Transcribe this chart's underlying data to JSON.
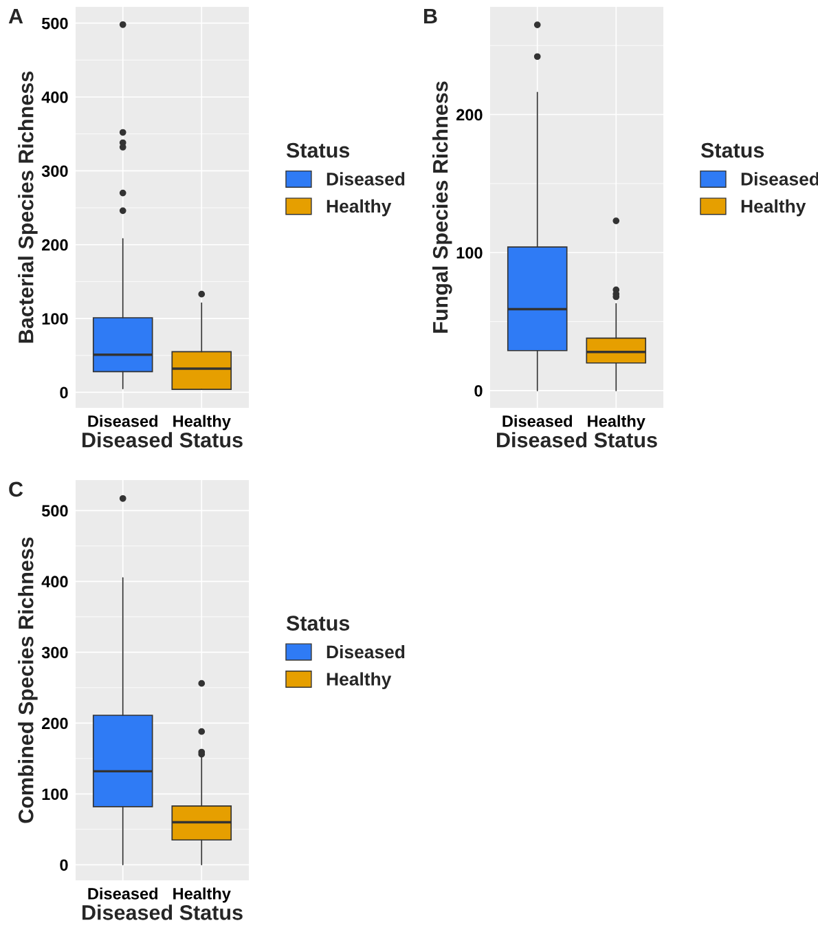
{
  "chart_data": [
    {
      "type": "box",
      "annotations": [
        "A"
      ],
      "xlabel": "Diseased Status",
      "ylabel": "Bacterial Species Richness",
      "legend_title": "Status",
      "legend": "right",
      "grid": true,
      "categories": [
        "Diseased",
        "Healthy"
      ],
      "ylim": [
        -21,
        522
      ],
      "yticks": [
        0,
        100,
        200,
        300,
        400,
        500
      ],
      "series": [
        {
          "name": "Diseased",
          "color": "#2f7bf5",
          "boxes": [
            {
              "low": 5,
              "q1": 28,
              "median": 51,
              "q3": 101,
              "high": 208,
              "outliers": [
                498,
                352,
                338,
                332,
                270,
                246
              ]
            },
            null
          ]
        },
        {
          "name": "Healthy",
          "color": "#e69f00",
          "boxes": [
            null,
            {
              "low": 4,
              "q1": 4,
              "median": 32,
              "q3": 55,
              "high": 121,
              "outliers": [
                133
              ]
            }
          ]
        }
      ]
    },
    {
      "type": "box",
      "annotations": [
        "B"
      ],
      "xlabel": "Diseased Status",
      "ylabel": "Fungal Species Richness",
      "legend_title": "Status",
      "legend": "right",
      "grid": true,
      "categories": [
        "Diseased",
        "Healthy"
      ],
      "ylim": [
        -12.5,
        278
      ],
      "yticks": [
        0,
        100,
        200
      ],
      "series": [
        {
          "name": "Diseased",
          "color": "#2f7bf5",
          "boxes": [
            {
              "low": 0,
              "q1": 29,
              "median": 59,
              "q3": 104,
              "high": 216,
              "outliers": [
                265,
                242
              ]
            },
            null
          ]
        },
        {
          "name": "Healthy",
          "color": "#e69f00",
          "boxes": [
            null,
            {
              "low": 0,
              "q1": 20,
              "median": 28,
              "q3": 38,
              "high": 63,
              "outliers": [
                123,
                73,
                70,
                68
              ]
            }
          ]
        }
      ]
    },
    {
      "type": "box",
      "annotations": [
        "C"
      ],
      "xlabel": "Diseased Status",
      "ylabel": "Combined Species Richness",
      "legend_title": "Status",
      "legend": "right",
      "grid": true,
      "categories": [
        "Diseased",
        "Healthy"
      ],
      "ylim": [
        -22,
        543
      ],
      "yticks": [
        0,
        100,
        200,
        300,
        400,
        500
      ],
      "series": [
        {
          "name": "Diseased",
          "color": "#2f7bf5",
          "boxes": [
            {
              "low": 0,
              "q1": 82,
              "median": 132,
              "q3": 211,
              "high": 405,
              "outliers": [
                517
              ]
            },
            null
          ]
        },
        {
          "name": "Healthy",
          "color": "#e69f00",
          "boxes": [
            null,
            {
              "low": 0,
              "q1": 35,
              "median": 60,
              "q3": 83,
              "high": 152,
              "outliers": [
                256,
                188,
                159,
                156
              ]
            }
          ]
        }
      ]
    }
  ]
}
